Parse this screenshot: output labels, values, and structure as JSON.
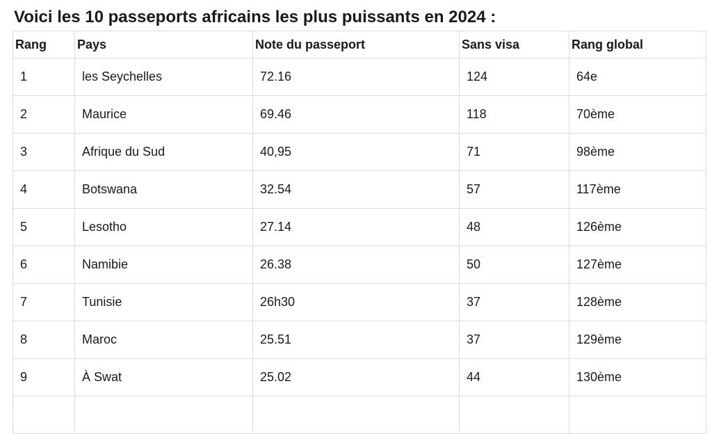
{
  "page": {
    "title": "Voici les 10 passeports africains les plus puissants en 2024 :"
  },
  "table": {
    "headers": [
      "Rang",
      "Pays",
      "Note du passeport",
      "Sans visa",
      "Rang global"
    ],
    "rows": [
      [
        "1",
        "les Seychelles",
        "72.16",
        "124",
        "64e"
      ],
      [
        "2",
        "Maurice",
        "69.46",
        "118",
        "70ème"
      ],
      [
        "3",
        "Afrique du Sud",
        "40,95",
        "71",
        "98ème"
      ],
      [
        "4",
        "Botswana",
        "32.54",
        "57",
        "117ème"
      ],
      [
        "5",
        "Lesotho",
        "27.14",
        "48",
        "126ème"
      ],
      [
        "6",
        "Namibie",
        "26.38",
        "50",
        "127ème"
      ],
      [
        "7",
        "Tunisie",
        "26h30",
        "37",
        "128ème"
      ],
      [
        "8",
        "Maroc",
        "25.51",
        "37",
        "129ème"
      ],
      [
        "9",
        "À Swat",
        "25.02",
        "44",
        "130ème"
      ],
      [
        "",
        "",
        "",
        "",
        ""
      ]
    ]
  },
  "colors": {
    "border": "#dcdcdc",
    "text": "#1a1a1a",
    "background": "#ffffff"
  }
}
